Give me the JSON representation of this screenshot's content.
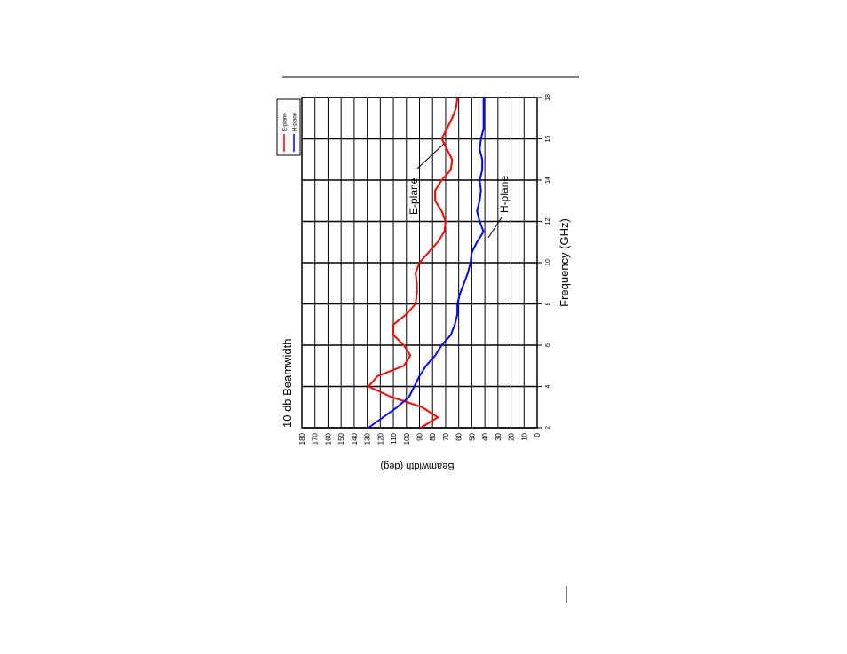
{
  "chart_data": {
    "type": "line",
    "title": "10 db Beamwidth",
    "x_label": "Frequency (GHz)",
    "y_label": "Beamwidth (deg)",
    "x": [
      2,
      2.5,
      3,
      3.5,
      4,
      4.5,
      5,
      5.5,
      6,
      6.5,
      7,
      7.5,
      8,
      8.5,
      9,
      9.5,
      10,
      10.5,
      11,
      11.5,
      12,
      12.5,
      13,
      13.5,
      14,
      14.5,
      15,
      15.5,
      16,
      16.5,
      17,
      17.5,
      18
    ],
    "series": [
      {
        "name": "E-plane",
        "color": "#ff0000",
        "values": [
          89,
          76,
          88,
          112,
          129,
          122,
          102,
          97,
          102,
          110,
          110,
          100,
          93,
          92,
          92,
          93,
          90,
          83,
          76,
          71,
          70,
          73,
          78,
          78,
          73,
          66,
          65,
          69,
          73,
          69,
          65,
          62,
          61
        ]
      },
      {
        "name": "H-plane",
        "color": "#0000ff",
        "values": [
          129,
          118,
          107,
          98,
          94,
          90,
          85,
          78,
          73,
          66,
          63,
          61,
          61,
          59,
          56,
          53,
          51,
          50,
          46,
          41,
          44,
          46,
          44,
          43,
          44,
          42,
          42,
          44,
          43,
          41,
          41,
          41,
          41
        ]
      }
    ],
    "annotations": [
      "E-plane",
      "H-plane"
    ],
    "xlim": [
      2,
      18
    ],
    "xticks": [
      2,
      4,
      6,
      8,
      10,
      12,
      14,
      16,
      18
    ],
    "ylim": [
      0,
      180
    ],
    "yticks": [
      0,
      10,
      20,
      30,
      40,
      50,
      60,
      70,
      80,
      90,
      100,
      110,
      120,
      130,
      140,
      150,
      160,
      170,
      180
    ],
    "grid": true
  }
}
